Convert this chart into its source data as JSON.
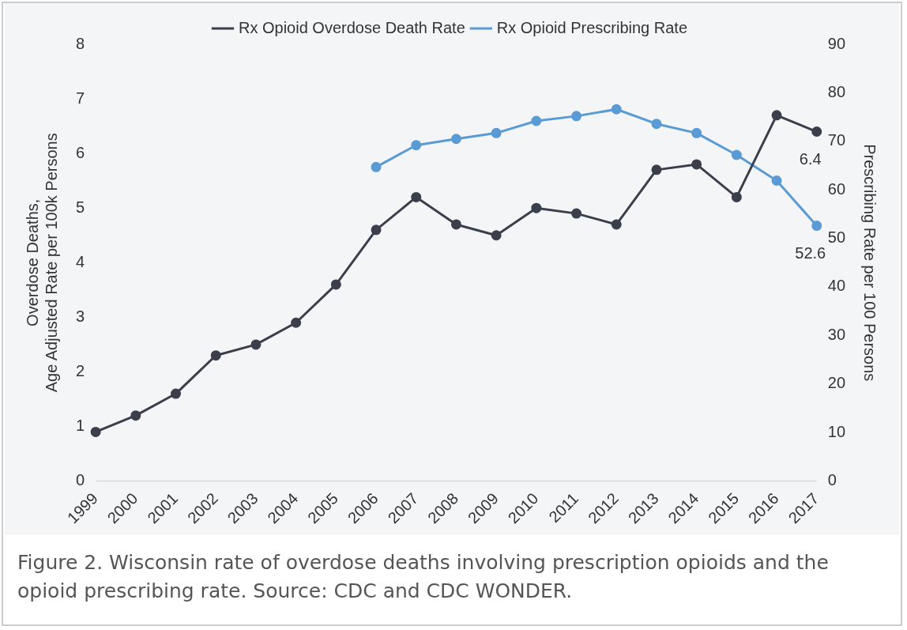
{
  "chart_data": {
    "type": "line",
    "ylabel": "Overdose Deaths,\nAge Adjusted Rate per 100k Persons",
    "y2label": "Prescribing Rate per 100 Persons",
    "categories": [
      "1999",
      "2000",
      "2001",
      "2002",
      "2003",
      "2004",
      "2005",
      "2006",
      "2007",
      "2008",
      "2009",
      "2010",
      "2011",
      "2012",
      "2013",
      "2014",
      "2015",
      "2016",
      "2017"
    ],
    "series": [
      {
        "name": "Rx Opioid Overdose Death Rate",
        "color": "#3b3f4c",
        "values": [
          0.9,
          1.2,
          1.6,
          2.3,
          2.5,
          2.9,
          3.6,
          4.6,
          5.2,
          4.7,
          4.5,
          5.0,
          4.9,
          4.7,
          5.7,
          5.8,
          5.2,
          6.7,
          6.4
        ],
        "value_labels": [
          null,
          null,
          null,
          null,
          null,
          null,
          null,
          null,
          null,
          null,
          null,
          null,
          null,
          null,
          null,
          null,
          null,
          null,
          "6.4"
        ]
      },
      {
        "name": "Rx Opioid Prescribing Rate",
        "color": "#5b9bd5",
        "axis": "y2",
        "values": [
          null,
          null,
          null,
          null,
          null,
          null,
          null,
          64.7,
          69.2,
          70.5,
          71.7,
          74.2,
          75.2,
          76.6,
          73.6,
          71.7,
          67.2,
          61.9,
          52.6
        ],
        "value_labels": [
          null,
          null,
          null,
          null,
          null,
          null,
          null,
          null,
          null,
          null,
          null,
          null,
          null,
          null,
          null,
          null,
          null,
          null,
          "52.6"
        ]
      }
    ],
    "ylim": [
      0,
      8
    ],
    "yticks": [
      0,
      1,
      2,
      3,
      4,
      5,
      6,
      7,
      8
    ],
    "y2lim": [
      0,
      90
    ],
    "y2ticks": [
      0,
      10,
      20,
      30,
      40,
      50,
      60,
      70,
      80,
      90
    ],
    "grid": false,
    "legend": "top",
    "marker": "circle",
    "line_style": "solid",
    "annotations": [
      "Figure 2. Wisconsin rate of overdose deaths involving prescription opioids and the opioid prescribing rate. Source: CDC and CDC WONDER."
    ]
  }
}
